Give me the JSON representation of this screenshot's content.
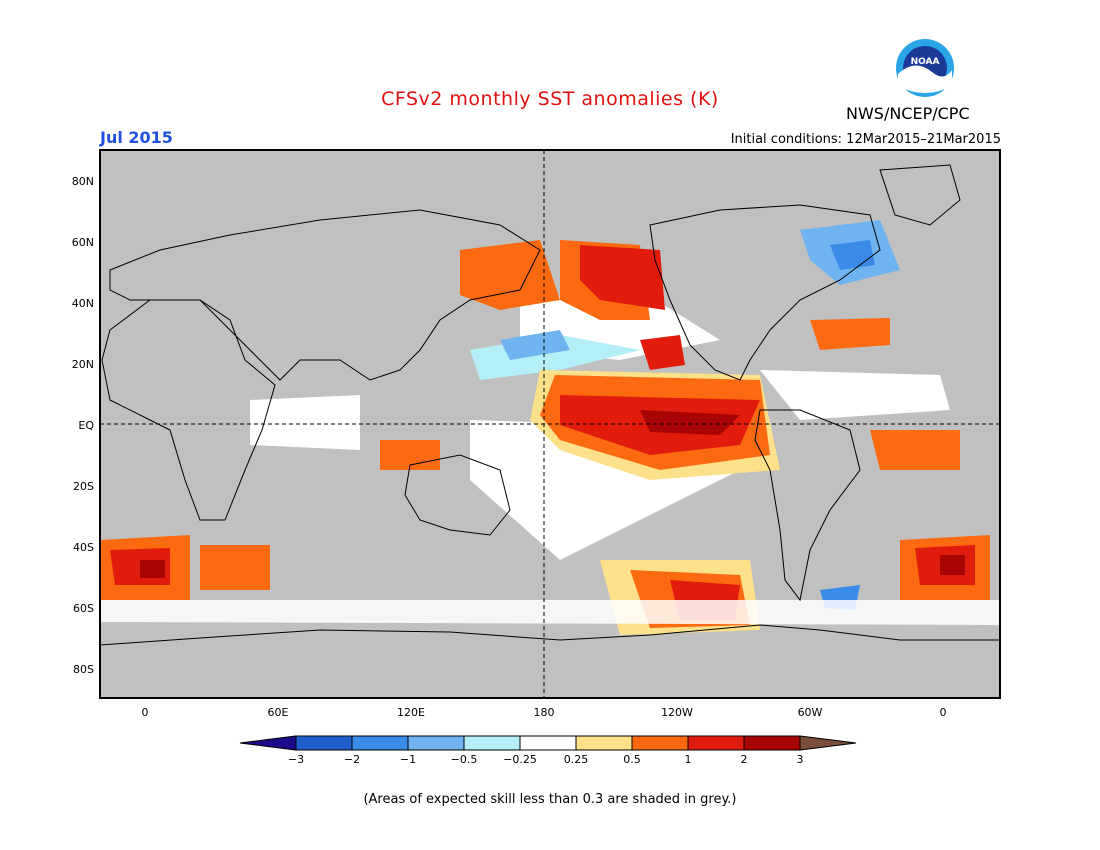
{
  "header": {
    "title": "CFSv2 monthly SST anomalies (K)",
    "organization": "NWS/NCEP/CPC",
    "logo_text": "NOAA",
    "target_month": "Jul 2015",
    "initial_conditions": "Initial conditions: 12Mar2015–21Mar2015"
  },
  "map": {
    "lat_ticks": [
      "80N",
      "60N",
      "40N",
      "20N",
      "EQ",
      "20S",
      "40S",
      "60S",
      "80S"
    ],
    "lon_ticks": [
      "0",
      "60E",
      "120E",
      "180",
      "120W",
      "60W",
      "0"
    ]
  },
  "colorbar": {
    "labels": [
      "−3",
      "−2",
      "−1",
      "−0.5",
      "−0.25",
      "0.25",
      "0.5",
      "1",
      "2",
      "3"
    ],
    "colors": [
      "#1c0a8c",
      "#1f5fcc",
      "#3a8ae8",
      "#6fb3f0",
      "#b4eef8",
      "#ffffff",
      "#fde08a",
      "#fb6a10",
      "#e21c0c",
      "#a80404",
      "#7a4e3a"
    ]
  },
  "colors": {
    "land": "#c0c0c0",
    "title": "#e01010",
    "month": "#2050e0"
  },
  "footnote": "(Areas of expected skill less than 0.3 are shaded in grey.)"
}
